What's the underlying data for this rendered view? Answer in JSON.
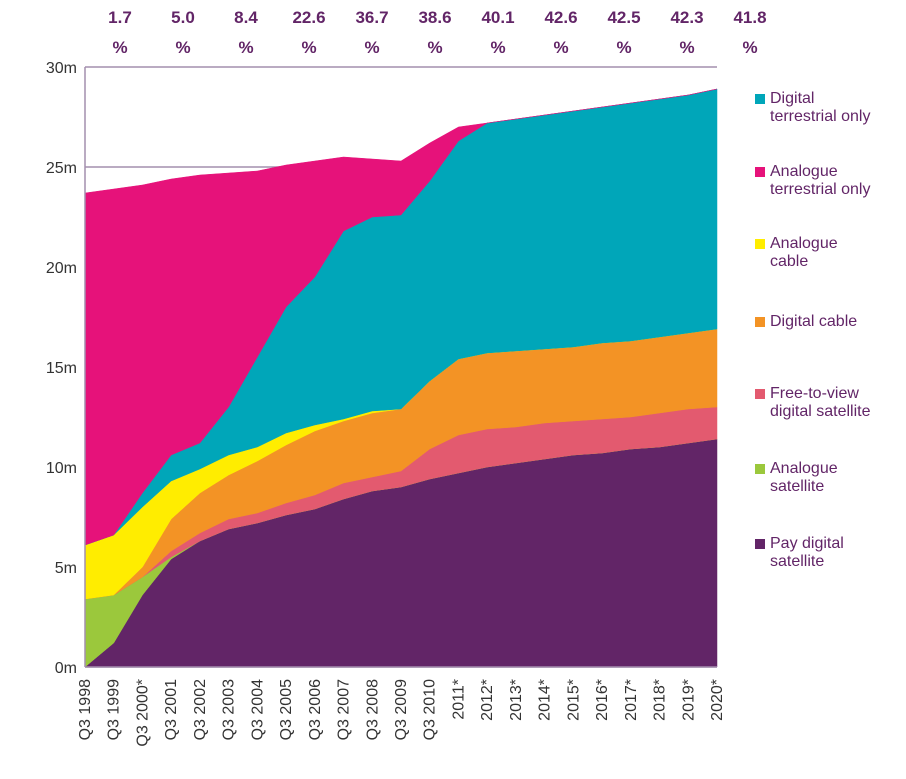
{
  "chart_data": {
    "type": "stacked_area",
    "annotations": [
      {
        "line1": "1.7",
        "line2": "%"
      },
      {
        "line1": "5.0",
        "line2": "%"
      },
      {
        "line1": "8.4",
        "line2": "%"
      },
      {
        "line1": "22.6",
        "line2": "%"
      },
      {
        "line1": "36.7",
        "line2": "%"
      },
      {
        "line1": "38.6",
        "line2": "%"
      },
      {
        "line1": "40.1",
        "line2": "%"
      },
      {
        "line1": "42.6",
        "line2": "%"
      },
      {
        "line1": "42.5",
        "line2": "%"
      },
      {
        "line1": "42.3",
        "line2": "%"
      },
      {
        "line1": "41.8",
        "line2": "%"
      }
    ],
    "categories": [
      "Q3 1998",
      "Q3 1999",
      "Q3 2000*",
      "Q3 2001",
      "Q3 2002",
      "Q3 2003",
      "Q3 2004",
      "Q3 2005",
      "Q3 2006",
      "Q3 2007",
      "Q3 2008",
      "Q3 2009",
      "Q3 2010",
      "2011*",
      "2012*",
      "2013*",
      "2014*",
      "2015*",
      "2016*",
      "2017*",
      "2018*",
      "2019*",
      "2020*"
    ],
    "series": [
      {
        "name": "Pay digital satellite",
        "color": "#622567",
        "values": [
          0,
          1.2,
          3.6,
          5.4,
          6.3,
          6.9,
          7.2,
          7.6,
          7.9,
          8.4,
          8.8,
          9.0,
          9.4,
          9.7,
          10.0,
          10.2,
          10.4,
          10.6,
          10.7,
          10.9,
          11.0,
          11.2,
          11.4
        ]
      },
      {
        "name": "Analogue satellite",
        "color": "#9bc83c",
        "values": [
          3.4,
          2.4,
          0.9,
          0.1,
          0,
          0,
          0,
          0,
          0,
          0,
          0,
          0,
          0,
          0,
          0,
          0,
          0,
          0,
          0,
          0,
          0,
          0,
          0
        ]
      },
      {
        "name": "Free-to-view digital satellite",
        "color": "#e35a6f",
        "values": [
          0,
          0,
          0,
          0.3,
          0.4,
          0.5,
          0.5,
          0.6,
          0.7,
          0.8,
          0.7,
          0.8,
          1.5,
          1.9,
          1.9,
          1.8,
          1.8,
          1.7,
          1.7,
          1.6,
          1.7,
          1.7,
          1.6
        ]
      },
      {
        "name": "Digital cable",
        "color": "#f39325",
        "values": [
          0,
          0,
          0.5,
          1.6,
          2.0,
          2.2,
          2.6,
          2.9,
          3.2,
          3.1,
          3.2,
          3.1,
          3.4,
          3.8,
          3.8,
          3.8,
          3.7,
          3.7,
          3.8,
          3.8,
          3.8,
          3.8,
          3.9
        ]
      },
      {
        "name": "Analogue cable",
        "color": "#ffed00",
        "values": [
          2.7,
          3.0,
          3.0,
          1.9,
          1.2,
          1.0,
          0.7,
          0.6,
          0.3,
          0.1,
          0.1,
          0,
          0,
          0,
          0,
          0,
          0,
          0,
          0,
          0,
          0,
          0,
          0
        ]
      },
      {
        "name": "Digital terrestrial only",
        "color": "#00a6b9",
        "values": [
          0,
          0,
          0.7,
          1.3,
          1.3,
          2.4,
          4.5,
          6.3,
          7.4,
          9.4,
          9.7,
          9.7,
          10.0,
          10.9,
          11.5,
          11.6,
          11.7,
          11.8,
          11.8,
          11.9,
          11.9,
          11.9,
          12.0
        ]
      },
      {
        "name": "Analogue terrestrial only",
        "color": "#e6127a",
        "values": [
          17.6,
          17.3,
          15.4,
          13.8,
          13.4,
          11.7,
          9.3,
          7.1,
          5.8,
          3.7,
          2.9,
          2.7,
          1.9,
          0.7,
          0,
          0,
          0,
          0,
          0,
          0,
          0,
          0,
          0
        ]
      }
    ],
    "ylim": [
      0,
      30
    ],
    "yticks": [
      {
        "value": 0,
        "label": "0m"
      },
      {
        "value": 5,
        "label": "5m"
      },
      {
        "value": 10,
        "label": "10m"
      },
      {
        "value": 15,
        "label": "15m"
      },
      {
        "value": 20,
        "label": "20m"
      },
      {
        "value": 25,
        "label": "25m"
      },
      {
        "value": 30,
        "label": "30m"
      }
    ],
    "grid": true,
    "legend": "right"
  }
}
